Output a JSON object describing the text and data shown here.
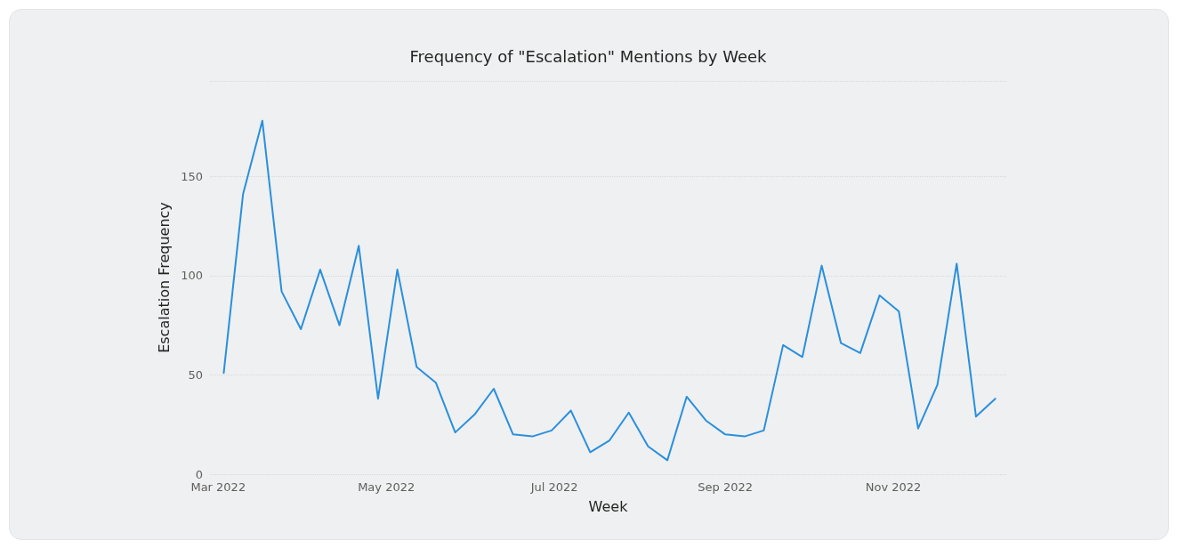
{
  "chart_data": {
    "type": "line",
    "title": "Frequency of \"Escalation\" Mentions by Week",
    "xlabel": "Week",
    "ylabel": "Escalation Frequency",
    "x": [
      "2022-03-03",
      "2022-03-10",
      "2022-03-17",
      "2022-03-24",
      "2022-03-31",
      "2022-04-07",
      "2022-04-14",
      "2022-04-21",
      "2022-04-28",
      "2022-05-05",
      "2022-05-12",
      "2022-05-19",
      "2022-05-26",
      "2022-06-02",
      "2022-06-09",
      "2022-06-16",
      "2022-06-23",
      "2022-06-30",
      "2022-07-07",
      "2022-07-14",
      "2022-07-21",
      "2022-07-28",
      "2022-08-04",
      "2022-08-11",
      "2022-08-18",
      "2022-08-25",
      "2022-09-01",
      "2022-09-08",
      "2022-09-15",
      "2022-09-22",
      "2022-09-29",
      "2022-10-06",
      "2022-10-13",
      "2022-10-20",
      "2022-10-27",
      "2022-11-03",
      "2022-11-10",
      "2022-11-17",
      "2022-11-24",
      "2022-12-01",
      "2022-12-08"
    ],
    "series": [
      {
        "color": "#2a8fdc",
        "values": [
          51,
          141,
          178,
          92,
          73,
          103,
          75,
          115,
          38,
          103,
          54,
          46,
          21,
          30,
          43,
          20,
          19,
          22,
          32,
          11,
          17,
          31,
          14,
          7,
          39,
          27,
          20,
          19,
          22,
          65,
          59,
          105,
          66,
          61,
          90,
          82,
          23,
          45,
          106,
          29,
          38
        ]
      }
    ],
    "xlim": [
      "2022-02-26",
      "2022-12-12"
    ],
    "xticks": [
      {
        "value": "2022-03-01",
        "label": "Mar 2022"
      },
      {
        "value": "2022-05-01",
        "label": "May 2022"
      },
      {
        "value": "2022-07-01",
        "label": "Jul 2022"
      },
      {
        "value": "2022-09-01",
        "label": "Sep 2022"
      },
      {
        "value": "2022-11-01",
        "label": "Nov 2022"
      }
    ],
    "ylim": [
      0,
      198
    ],
    "yticks": [
      0,
      50,
      100,
      150,
      {
        "value": 198,
        "label": null
      }
    ],
    "grid": "y",
    "marker": "none",
    "line_style": "solid"
  }
}
